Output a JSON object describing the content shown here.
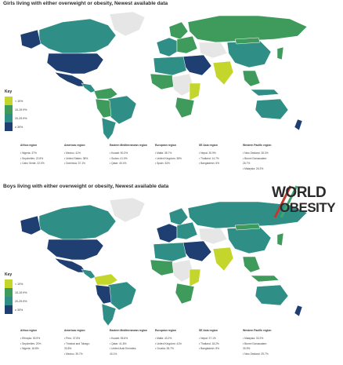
{
  "colors": {
    "ocean": "#ffffff",
    "no_data": "#e6e6e6",
    "light": "#c4d62b",
    "mid": "#6fb07a",
    "teal": "#2f8f86",
    "green": "#3e9b5c",
    "dark": "#1f3f73",
    "logo_red": "#c0392b",
    "logo_green": "#3fa56b"
  },
  "girls": {
    "title": "Girls living with either overweight or obesity, Newest available data",
    "key": {
      "title": "Key",
      "items": [
        {
          "label": "< 10%",
          "color": "#c4d62b"
        },
        {
          "label": "10-19.9%",
          "color": "#3e9b5c"
        },
        {
          "label": "20-29.9%",
          "color": "#2f8f86"
        },
        {
          "label": "≥ 30%",
          "color": "#1f3f73"
        }
      ]
    },
    "regions": [
      {
        "name": "Africa region",
        "items": [
          "• Nigeria: 37%",
          "• Seychelles: 22.8%",
          "• Cabo Verde: 22.0%"
        ]
      },
      {
        "name": "Americas region",
        "items": [
          "• Mexico: 41%",
          "• United States: 38%",
          "• Dominica: 37.1%"
        ]
      },
      {
        "name": "Eastern Mediterranean region",
        "items": [
          "• Kuwait: 50.3%",
          "• Sudan: 41.5%",
          "• Qatar: 40.4%"
        ]
      },
      {
        "name": "European region",
        "items": [
          "• Malta: 38.7%",
          "• United Kingdom: 38%",
          "• Spain: 34%"
        ]
      },
      {
        "name": "SE Asia region",
        "items": [
          "• Nepal: 30.9%",
          "• Thailand: 14.7%",
          "• Bangladesh: 6%"
        ]
      },
      {
        "name": "Western Pacific region",
        "items": [
          "• New Zealand: 28.3%",
          "• Brunei Darussalam:",
          "  26.7%",
          "• Malaysia: 26.3%"
        ]
      }
    ]
  },
  "boys": {
    "title": "Boys living with either overweight or obesity, Newest available data",
    "key": {
      "title": "Key",
      "items": [
        {
          "label": "< 10%",
          "color": "#c4d62b"
        },
        {
          "label": "10-19.9%",
          "color": "#3e9b5c"
        },
        {
          "label": "20-29.9%",
          "color": "#2f8f86"
        },
        {
          "label": "≥ 30%",
          "color": "#1f3f73"
        }
      ]
    },
    "regions": [
      {
        "name": "Africa region",
        "items": [
          "• Ethiopia: 30.9%",
          "• Seychelles: 20%",
          "• Nigeria: 18.8%"
        ]
      },
      {
        "name": "Americas region",
        "items": [
          "• Peru: 37.8%",
          "• Trinidad and Tobago:",
          "  33.8%",
          "• Mexico: 39.7%"
        ]
      },
      {
        "name": "Eastern Mediterranean region",
        "items": [
          "• Kuwait: 55.6%",
          "• Qatar: 41.8%",
          "• United Arab Emirates:",
          "  40.1%"
        ]
      },
      {
        "name": "European region",
        "items": [
          "• Malta: 43.2%",
          "• United Kingdom: 41%",
          "• Croatia: 38.7%"
        ]
      },
      {
        "name": "SE Asia region",
        "items": [
          "• Nepal: 37.1%",
          "• Thailand: 18.2%",
          "• Bangladesh: 8%"
        ]
      },
      {
        "name": "Western Pacific region",
        "items": [
          "• Malaysia: 33.3%",
          "• Brunei Darussalam:",
          "  30.9%",
          "• New Zealand: 29.7%"
        ]
      }
    ]
  },
  "logo": {
    "line1": "WORLD",
    "line2": "OBESITY"
  }
}
